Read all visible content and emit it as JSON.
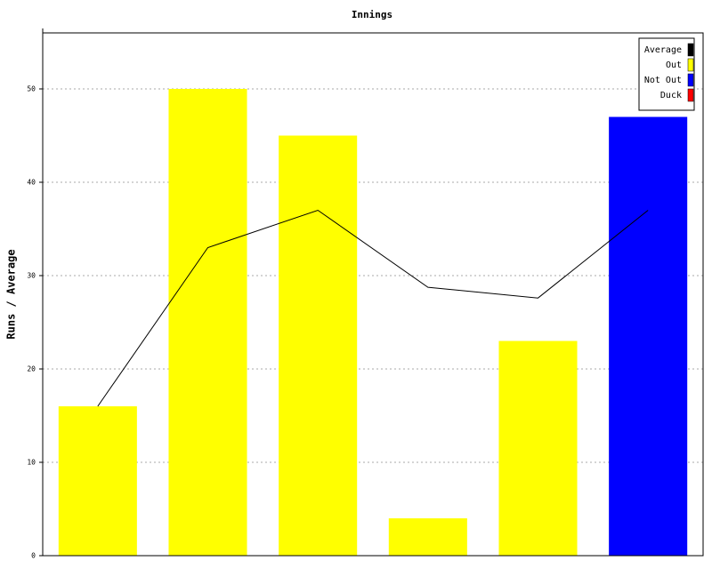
{
  "chart_data": {
    "type": "bar",
    "title": "Innings",
    "y_label": "Runs / Average",
    "categories": [
      null,
      null,
      null,
      null,
      null,
      null
    ],
    "series": [
      {
        "name": "Average",
        "color": "#000000",
        "type": "line",
        "values": [
          16,
          33,
          37,
          28.75,
          27.6,
          37
        ]
      },
      {
        "name": "Out",
        "color": "#ffff00",
        "type": "bar",
        "values": [
          16,
          50,
          45,
          4,
          23,
          null
        ]
      },
      {
        "name": "Not Out",
        "color": "#0000ff",
        "type": "bar",
        "values": [
          null,
          null,
          null,
          null,
          null,
          47
        ]
      },
      {
        "name": "Duck",
        "color": "#ff0000",
        "type": "bar",
        "values": [
          null,
          null,
          null,
          null,
          null,
          null
        ]
      }
    ],
    "ylim": [
      0,
      56
    ],
    "yticks": [
      0,
      10,
      20,
      30,
      40,
      50
    ],
    "grid": true,
    "legend": "top-right"
  }
}
